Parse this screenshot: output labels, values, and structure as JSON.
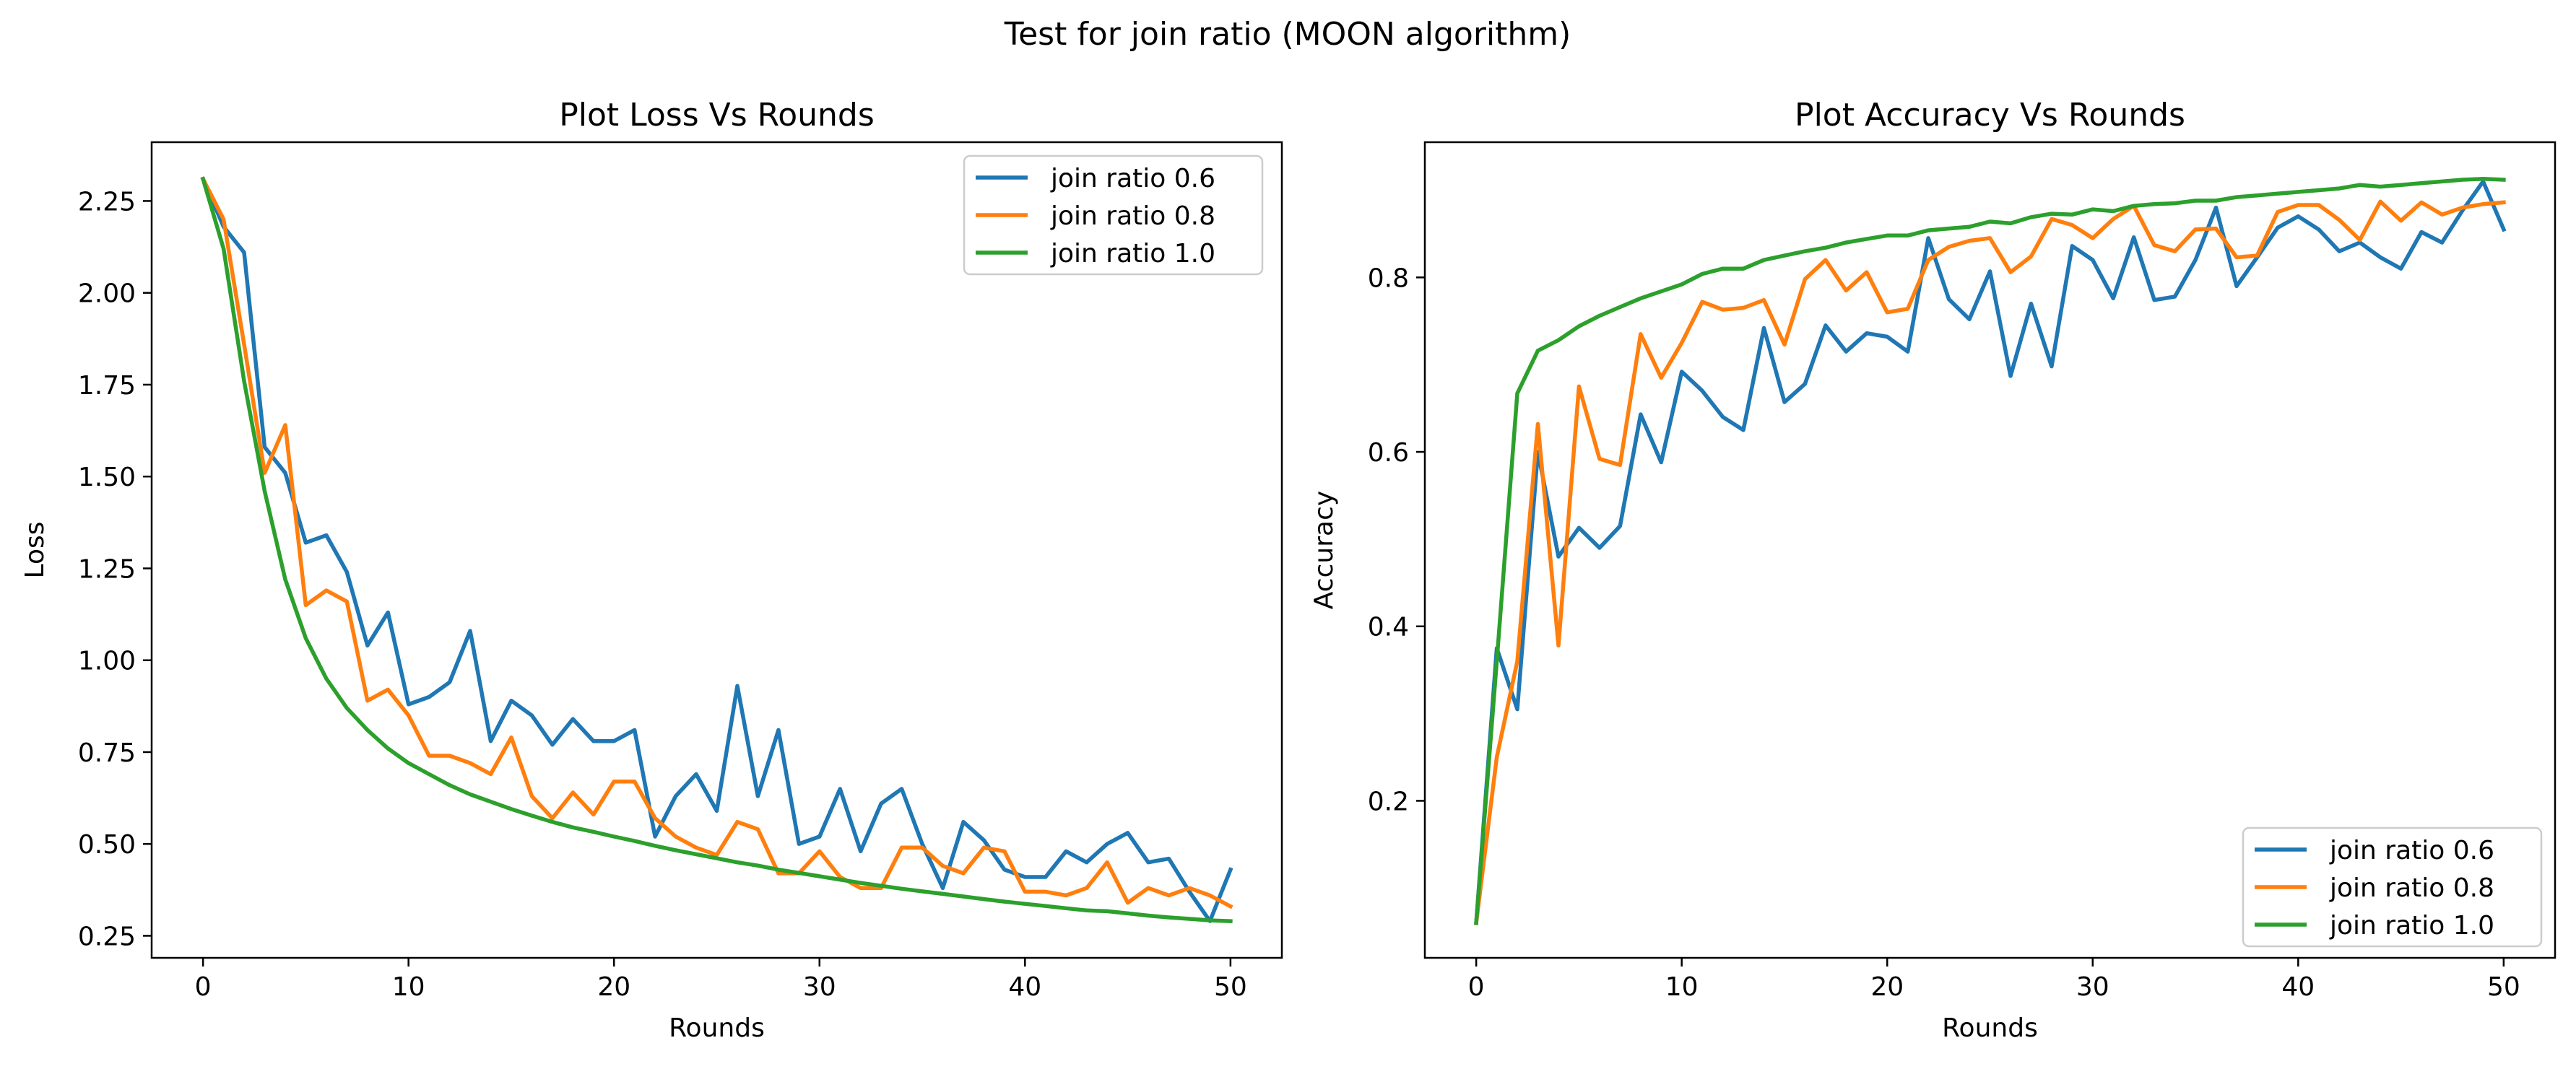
{
  "figure": {
    "suptitle": "Test for join ratio (MOON algorithm)"
  },
  "chart_data": [
    {
      "type": "line",
      "title": "Plot Loss Vs Rounds",
      "xlabel": "Rounds",
      "ylabel": "Loss",
      "xlim": [
        -2.5,
        52.5
      ],
      "ylim": [
        0.19,
        2.41
      ],
      "xticks": [
        0,
        10,
        20,
        30,
        40,
        50
      ],
      "yticks": [
        0.25,
        0.5,
        0.75,
        1.0,
        1.25,
        1.5,
        1.75,
        2.0,
        2.25
      ],
      "ytick_labels": [
        "0.25",
        "0.50",
        "0.75",
        "1.00",
        "1.25",
        "1.50",
        "1.75",
        "2.00",
        "2.25"
      ],
      "grid": false,
      "legend_position": "upper right",
      "x": [
        0,
        1,
        2,
        3,
        4,
        5,
        6,
        7,
        8,
        9,
        10,
        11,
        12,
        13,
        14,
        15,
        16,
        17,
        18,
        19,
        20,
        21,
        22,
        23,
        24,
        25,
        26,
        27,
        28,
        29,
        30,
        31,
        32,
        33,
        34,
        35,
        36,
        37,
        38,
        39,
        40,
        41,
        42,
        43,
        44,
        45,
        46,
        47,
        48,
        49,
        50
      ],
      "series": [
        {
          "name": "join ratio 0.6",
          "color": "#1f77b4",
          "values": [
            2.31,
            2.18,
            2.11,
            1.58,
            1.51,
            1.32,
            1.34,
            1.24,
            1.04,
            1.13,
            0.88,
            0.9,
            0.94,
            1.08,
            0.78,
            0.89,
            0.85,
            0.77,
            0.84,
            0.78,
            0.78,
            0.81,
            0.52,
            0.63,
            0.69,
            0.59,
            0.93,
            0.63,
            0.81,
            0.5,
            0.52,
            0.65,
            0.48,
            0.61,
            0.65,
            0.5,
            0.38,
            0.56,
            0.51,
            0.43,
            0.41,
            0.41,
            0.48,
            0.45,
            0.5,
            0.53,
            0.45,
            0.46,
            0.37,
            0.29,
            0.43
          ]
        },
        {
          "name": "join ratio 0.8",
          "color": "#ff7f0e",
          "values": [
            2.31,
            2.2,
            1.86,
            1.51,
            1.64,
            1.15,
            1.19,
            1.16,
            0.89,
            0.92,
            0.85,
            0.74,
            0.74,
            0.72,
            0.69,
            0.79,
            0.63,
            0.57,
            0.64,
            0.58,
            0.67,
            0.67,
            0.57,
            0.52,
            0.49,
            0.47,
            0.56,
            0.54,
            0.42,
            0.42,
            0.48,
            0.41,
            0.38,
            0.38,
            0.49,
            0.49,
            0.44,
            0.42,
            0.49,
            0.48,
            0.37,
            0.37,
            0.36,
            0.38,
            0.45,
            0.34,
            0.38,
            0.36,
            0.38,
            0.36,
            0.33
          ]
        },
        {
          "name": "join ratio 1.0",
          "color": "#2ca02c",
          "values": [
            2.31,
            2.12,
            1.76,
            1.46,
            1.22,
            1.06,
            0.95,
            0.87,
            0.81,
            0.76,
            0.72,
            0.69,
            0.66,
            0.635,
            0.615,
            0.595,
            0.577,
            0.56,
            0.545,
            0.533,
            0.52,
            0.508,
            0.495,
            0.483,
            0.472,
            0.461,
            0.45,
            0.441,
            0.43,
            0.421,
            0.412,
            0.403,
            0.394,
            0.386,
            0.378,
            0.371,
            0.364,
            0.357,
            0.35,
            0.343,
            0.337,
            0.331,
            0.325,
            0.319,
            0.317,
            0.311,
            0.305,
            0.3,
            0.296,
            0.292,
            0.29
          ]
        }
      ]
    },
    {
      "type": "line",
      "title": "Plot Accuracy Vs Rounds",
      "xlabel": "Rounds",
      "ylabel": "Accuracy",
      "xlim": [
        -2.5,
        52.5
      ],
      "ylim": [
        0.02,
        0.955
      ],
      "xticks": [
        0,
        10,
        20,
        30,
        40,
        50
      ],
      "yticks": [
        0.2,
        0.4,
        0.6,
        0.8
      ],
      "ytick_labels": [
        "0.2",
        "0.4",
        "0.6",
        "0.8"
      ],
      "grid": false,
      "legend_position": "lower right",
      "x": [
        0,
        1,
        2,
        3,
        4,
        5,
        6,
        7,
        8,
        9,
        10,
        11,
        12,
        13,
        14,
        15,
        16,
        17,
        18,
        19,
        20,
        21,
        22,
        23,
        24,
        25,
        26,
        27,
        28,
        29,
        30,
        31,
        32,
        33,
        34,
        35,
        36,
        37,
        38,
        39,
        40,
        41,
        42,
        43,
        44,
        45,
        46,
        47,
        48,
        49,
        50
      ],
      "series": [
        {
          "name": "join ratio 0.6",
          "color": "#1f77b4",
          "values": [
            0.06,
            0.375,
            0.305,
            0.6,
            0.48,
            0.513,
            0.49,
            0.515,
            0.643,
            0.588,
            0.692,
            0.67,
            0.64,
            0.625,
            0.742,
            0.657,
            0.678,
            0.745,
            0.715,
            0.736,
            0.732,
            0.715,
            0.845,
            0.775,
            0.752,
            0.807,
            0.687,
            0.77,
            0.698,
            0.836,
            0.82,
            0.776,
            0.846,
            0.774,
            0.778,
            0.82,
            0.88,
            0.79,
            0.823,
            0.857,
            0.87,
            0.855,
            0.83,
            0.84,
            0.823,
            0.81,
            0.852,
            0.84,
            0.877,
            0.91,
            0.855
          ]
        },
        {
          "name": "join ratio 0.8",
          "color": "#ff7f0e",
          "values": [
            0.06,
            0.25,
            0.36,
            0.632,
            0.378,
            0.675,
            0.592,
            0.585,
            0.735,
            0.685,
            0.725,
            0.772,
            0.763,
            0.765,
            0.774,
            0.723,
            0.798,
            0.82,
            0.785,
            0.806,
            0.76,
            0.764,
            0.82,
            0.835,
            0.842,
            0.845,
            0.806,
            0.824,
            0.867,
            0.86,
            0.845,
            0.867,
            0.882,
            0.837,
            0.83,
            0.855,
            0.856,
            0.823,
            0.825,
            0.875,
            0.883,
            0.883,
            0.866,
            0.843,
            0.887,
            0.865,
            0.886,
            0.872,
            0.88,
            0.884,
            0.886
          ]
        },
        {
          "name": "join ratio 1.0",
          "color": "#2ca02c",
          "values": [
            0.06,
            0.36,
            0.667,
            0.716,
            0.728,
            0.744,
            0.756,
            0.766,
            0.776,
            0.784,
            0.792,
            0.804,
            0.81,
            0.81,
            0.82,
            0.825,
            0.83,
            0.834,
            0.84,
            0.844,
            0.848,
            0.848,
            0.854,
            0.856,
            0.858,
            0.864,
            0.862,
            0.869,
            0.873,
            0.872,
            0.878,
            0.876,
            0.882,
            0.884,
            0.885,
            0.888,
            0.888,
            0.892,
            0.894,
            0.896,
            0.898,
            0.9,
            0.902,
            0.906,
            0.904,
            0.906,
            0.908,
            0.91,
            0.912,
            0.913,
            0.912
          ]
        }
      ]
    }
  ]
}
